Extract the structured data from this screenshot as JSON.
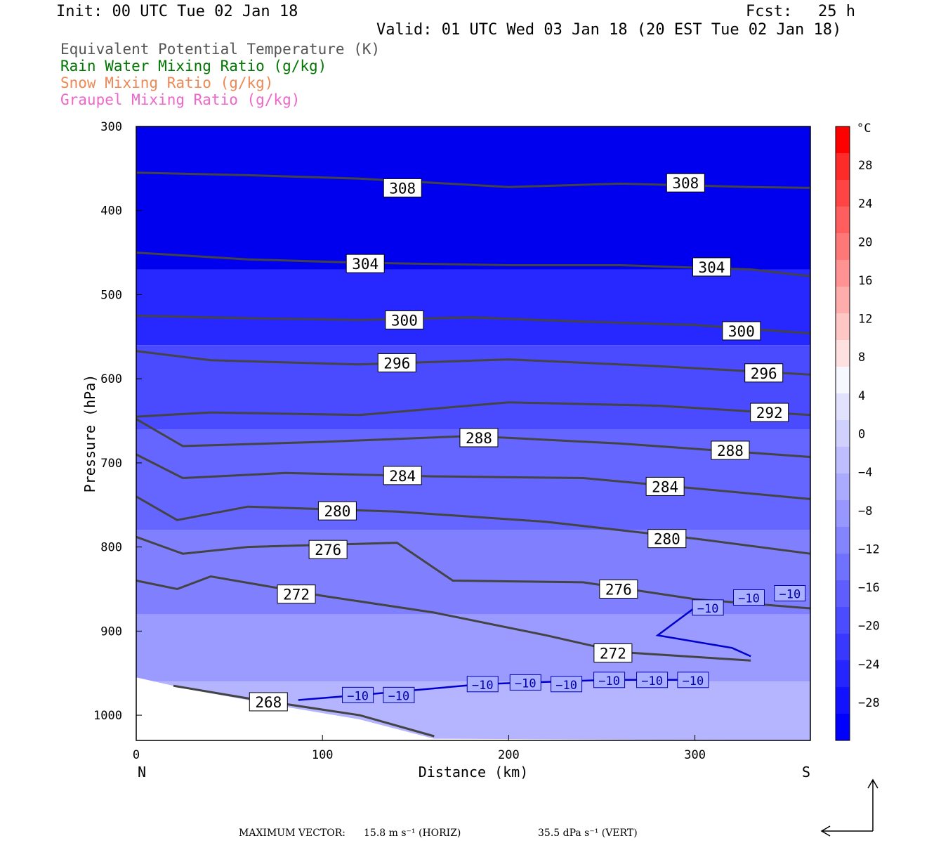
{
  "header": {
    "init": "Init: 00 UTC Tue 02 Jan 18",
    "fcst_label": "Fcst:",
    "fcst_value": "25 h",
    "valid": "Valid: 01 UTC Wed 03 Jan 18 (20 EST Tue 02 Jan 18)"
  },
  "legend": [
    {
      "label": "Equivalent Potential Temperature (K)",
      "color": "#555555"
    },
    {
      "label": "Rain Water Mixing Ratio (g/kg)",
      "color": "#007700"
    },
    {
      "label": "Snow Mixing Ratio (g/kg)",
      "color": "#ee8855"
    },
    {
      "label": "Graupel Mixing Ratio (g/kg)",
      "color": "#ee66cc"
    }
  ],
  "footer": {
    "max_vector_label": "MAXIMUM VECTOR:",
    "horiz": "15.8 m s⁻¹ (HORIZ)",
    "vert": "35.5 dPa s⁻¹ (VERT)"
  },
  "chart_data": {
    "type": "contour",
    "xlabel": "Distance (km)",
    "ylabel": "Pressure (hPa)",
    "xlim": [
      0,
      362
    ],
    "ylim": [
      1030,
      300
    ],
    "x_ticks": [
      0,
      100,
      200,
      300
    ],
    "y_ticks": [
      300,
      400,
      500,
      600,
      700,
      800,
      900,
      1000
    ],
    "left_end_label": "N",
    "right_end_label": "S",
    "colorbar": {
      "unit": "°C",
      "labels": [
        "28",
        "24",
        "20",
        "16",
        "12",
        "8",
        "4",
        "0",
        "−4",
        "−8",
        "−12",
        "−16",
        "−20",
        "−24",
        "−28"
      ],
      "colors": [
        "#ff0000",
        "#ff2a2a",
        "#ff4444",
        "#ff5e5e",
        "#ff7878",
        "#ff9292",
        "#ffacac",
        "#ffc6c6",
        "#ffe0e0",
        "#f7f7ff",
        "#e2e2ff",
        "#d0d0ff",
        "#bdbdff",
        "#aaaaff",
        "#9797ff",
        "#8484ff",
        "#7171ff",
        "#5e5eff",
        "#4b4bff",
        "#3838ff",
        "#2525ff",
        "#1212ff",
        "#0000ff"
      ]
    },
    "temperature_shading": [
      {
        "p_top": 300,
        "p_bottom": 470,
        "color": "#0000ee"
      },
      {
        "p_top": 470,
        "p_bottom": 560,
        "color": "#2727ff"
      },
      {
        "p_top": 560,
        "p_bottom": 660,
        "color": "#4a4aff"
      },
      {
        "p_top": 660,
        "p_bottom": 780,
        "color": "#6565ff"
      },
      {
        "p_top": 780,
        "p_bottom": 880,
        "color": "#8080ff"
      },
      {
        "p_top": 880,
        "p_bottom": 960,
        "color": "#9a9aff"
      },
      {
        "p_top": 960,
        "p_bottom": 1030,
        "color": "#b4b4ff"
      }
    ],
    "theta_e_contours": [
      {
        "label": "308",
        "points": [
          [
            0,
            355
          ],
          [
            60,
            358
          ],
          [
            120,
            362
          ],
          [
            200,
            372
          ],
          [
            260,
            368
          ],
          [
            330,
            372
          ],
          [
            362,
            373
          ]
        ],
        "label_at": [
          [
            143,
            373
          ],
          [
            295,
            367
          ]
        ]
      },
      {
        "label": "304",
        "points": [
          [
            0,
            450
          ],
          [
            60,
            458
          ],
          [
            120,
            462
          ],
          [
            200,
            465
          ],
          [
            260,
            465
          ],
          [
            330,
            470
          ],
          [
            362,
            478
          ]
        ],
        "label_at": [
          [
            123,
            463
          ],
          [
            309,
            467
          ]
        ]
      },
      {
        "label": "300",
        "points": [
          [
            0,
            525
          ],
          [
            60,
            528
          ],
          [
            120,
            530
          ],
          [
            180,
            527
          ],
          [
            240,
            532
          ],
          [
            300,
            536
          ],
          [
            362,
            546
          ]
        ],
        "label_at": [
          [
            144,
            530
          ],
          [
            325,
            543
          ]
        ]
      },
      {
        "label": "296",
        "points": [
          [
            0,
            567
          ],
          [
            40,
            578
          ],
          [
            120,
            583
          ],
          [
            200,
            577
          ],
          [
            280,
            585
          ],
          [
            362,
            595
          ]
        ],
        "label_at": [
          [
            140,
            581
          ],
          [
            337,
            593
          ]
        ]
      },
      {
        "label": "292",
        "points": [
          [
            0,
            645
          ],
          [
            40,
            640
          ],
          [
            120,
            643
          ],
          [
            200,
            628
          ],
          [
            280,
            632
          ],
          [
            362,
            643
          ]
        ],
        "label_at": [
          [
            340,
            640
          ]
        ]
      },
      {
        "label": "288",
        "points": [
          [
            0,
            648
          ],
          [
            25,
            680
          ],
          [
            100,
            675
          ],
          [
            180,
            668
          ],
          [
            260,
            677
          ],
          [
            362,
            693
          ]
        ],
        "label_at": [
          [
            184,
            670
          ],
          [
            319,
            685
          ]
        ]
      },
      {
        "label": "284",
        "points": [
          [
            0,
            690
          ],
          [
            25,
            718
          ],
          [
            80,
            712
          ],
          [
            160,
            716
          ],
          [
            240,
            718
          ],
          [
            362,
            743
          ]
        ],
        "label_at": [
          [
            143,
            715
          ],
          [
            284,
            728
          ]
        ]
      },
      {
        "label": "280",
        "points": [
          [
            0,
            740
          ],
          [
            22,
            768
          ],
          [
            60,
            752
          ],
          [
            140,
            758
          ],
          [
            220,
            770
          ],
          [
            300,
            790
          ],
          [
            362,
            808
          ]
        ],
        "label_at": [
          [
            108,
            757
          ],
          [
            285,
            790
          ]
        ]
      },
      {
        "label": "276",
        "points": [
          [
            0,
            788
          ],
          [
            25,
            808
          ],
          [
            60,
            800
          ],
          [
            140,
            795
          ],
          [
            170,
            840
          ],
          [
            240,
            842
          ],
          [
            300,
            862
          ],
          [
            362,
            873
          ]
        ],
        "label_at": [
          [
            103,
            803
          ],
          [
            259,
            850
          ]
        ]
      },
      {
        "label": "272",
        "points": [
          [
            0,
            840
          ],
          [
            22,
            850
          ],
          [
            40,
            835
          ],
          [
            100,
            858
          ],
          [
            160,
            878
          ],
          [
            220,
            905
          ],
          [
            260,
            925
          ],
          [
            330,
            935
          ]
        ],
        "label_at": [
          [
            86,
            856
          ],
          [
            256,
            926
          ]
        ]
      },
      {
        "label": "268",
        "points": [
          [
            20,
            965
          ],
          [
            60,
            980
          ],
          [
            120,
            1000
          ],
          [
            160,
            1025
          ]
        ],
        "label_at": [
          [
            71,
            984
          ]
        ]
      }
    ],
    "temp_minus10_labels": [
      {
        "label": "−10",
        "at": [
          119,
          976
        ]
      },
      {
        "label": "−10",
        "at": [
          141,
          976
        ]
      },
      {
        "label": "−10",
        "at": [
          186,
          963
        ]
      },
      {
        "label": "−10",
        "at": [
          209,
          961
        ]
      },
      {
        "label": "−10",
        "at": [
          231,
          963
        ]
      },
      {
        "label": "−10",
        "at": [
          254,
          958
        ]
      },
      {
        "label": "−10",
        "at": [
          277,
          958
        ]
      },
      {
        "label": "−10",
        "at": [
          299,
          958
        ]
      },
      {
        "label": "−10",
        "at": [
          307,
          872
        ]
      },
      {
        "label": "−10",
        "at": [
          329,
          860
        ]
      },
      {
        "label": "−10",
        "at": [
          351,
          855
        ]
      }
    ]
  }
}
